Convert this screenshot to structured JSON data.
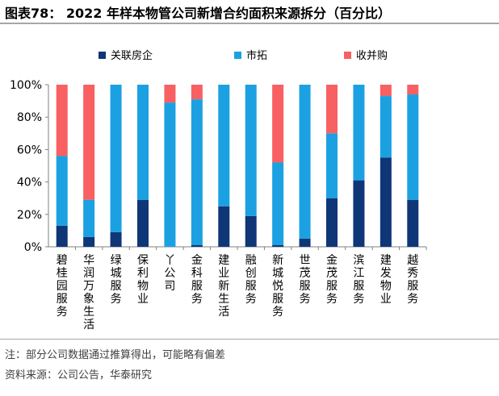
{
  "figure": {
    "title": "图表78： 2022 年样本物管公司新增合约面积来源拆分（百分比）",
    "note": "注：部分公司数据通过推算得出，可能略有偏差",
    "source": "资料来源：公司公告，华泰研究"
  },
  "chart_data": {
    "type": "bar",
    "stacked": true,
    "categories": [
      "碧桂园服务",
      "华润万象生活",
      "绿城服务",
      "保利物业",
      "丫公司",
      "金科服务",
      "建业新生活",
      "融创服务",
      "新城悦服务",
      "世茂服务",
      "金茂服务",
      "滨江服务",
      "建发物业",
      "越秀服务"
    ],
    "series": [
      {
        "name": "关联房企",
        "color": "#0f3677",
        "values": [
          13,
          6,
          9,
          29,
          0,
          1,
          25,
          19,
          1,
          5,
          30,
          41,
          55,
          29
        ]
      },
      {
        "name": "市拓",
        "color": "#1ba1e2",
        "values": [
          43,
          23,
          91,
          71,
          89,
          90,
          75,
          81,
          51,
          95,
          40,
          59,
          38,
          65
        ]
      },
      {
        "name": "收并购",
        "color": "#f86062",
        "values": [
          44,
          71,
          0,
          0,
          11,
          9,
          0,
          0,
          48,
          0,
          30,
          0,
          7,
          6
        ]
      }
    ],
    "ylim": [
      0,
      100
    ],
    "yticks": [
      "0%",
      "20%",
      "40%",
      "60%",
      "80%",
      "100%"
    ],
    "legend_position": "top"
  }
}
